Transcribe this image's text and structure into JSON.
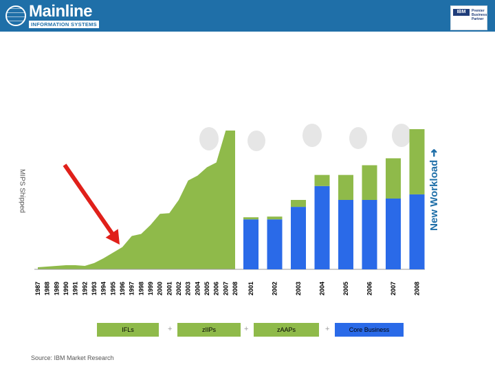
{
  "header": {
    "logo_name": "Mainline",
    "logo_subtitle": "INFORMATION SYSTEMS",
    "partner_badge": "IBM",
    "partner_text": "Premier\nBusiness\nPartner"
  },
  "y_axis_label": "MIPS Shipped",
  "new_workload_label": "New Workload",
  "legend": [
    {
      "label": "IFLs",
      "color": "#8fba4a"
    },
    {
      "label": "zIIPs",
      "color": "#8fba4a"
    },
    {
      "label": "zAAPs",
      "color": "#8fba4a"
    },
    {
      "label": "Core Business",
      "color": "#2a6ae8"
    }
  ],
  "legend_separator": "+",
  "source": "Source: IBM Market Research",
  "colors": {
    "brand": "#1f6fa8",
    "area": "#8fba4a",
    "core": "#2a6ae8",
    "new": "#8fba4a",
    "arrow": "#e0201a"
  },
  "chart_data": [
    {
      "type": "area",
      "x": [
        "1987",
        "1988",
        "1989",
        "1990",
        "1991",
        "1992",
        "1993",
        "1994",
        "1995",
        "1996",
        "1997",
        "1998",
        "1999",
        "2000",
        "2001",
        "2002",
        "2003",
        "2004",
        "2005",
        "2006",
        "2007",
        "2008"
      ],
      "values": [
        1.5,
        2.0,
        2.5,
        3.0,
        3.0,
        2.5,
        4.5,
        8.0,
        12.0,
        16.0,
        24.0,
        25.5,
        32.0,
        40.0,
        40.5,
        50.0,
        64.0,
        67.5,
        73.5,
        77.0,
        100.0,
        100.0
      ],
      "ylim": [
        0,
        100
      ],
      "annotation": "arrow"
    },
    {
      "type": "bar",
      "stacked": true,
      "categories": [
        "2001",
        "2002",
        "2003",
        "2004",
        "2005",
        "2006",
        "2007",
        "2008"
      ],
      "series": [
        {
          "name": "Core Business",
          "values": [
            36,
            36,
            45,
            60,
            50,
            50,
            51,
            54
          ]
        },
        {
          "name": "New Workload",
          "values": [
            1.5,
            2,
            5,
            8,
            18,
            25,
            29,
            47
          ]
        }
      ],
      "ylim": [
        0,
        100
      ]
    }
  ]
}
